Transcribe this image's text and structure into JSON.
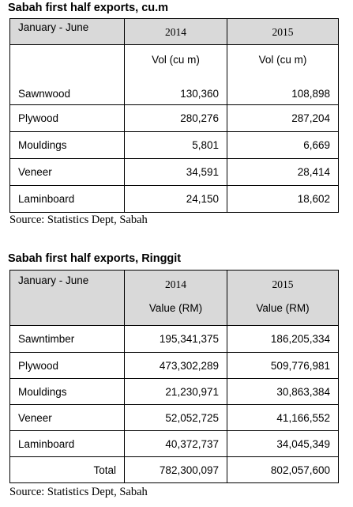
{
  "table1": {
    "title": "Sabah first half exports, cu.m",
    "period_label": "January - June",
    "years": [
      "2014",
      "2015"
    ],
    "units": [
      "Vol (cu m)",
      "Vol (cu m)"
    ],
    "rows": [
      {
        "label": "Sawnwood",
        "v2014": "130,360",
        "v2015": "108,898"
      },
      {
        "label": "Plywood",
        "v2014": "280,276",
        "v2015": "287,204"
      },
      {
        "label": "Mouldings",
        "v2014": "5,801",
        "v2015": "6,669"
      },
      {
        "label": "Veneer",
        "v2014": "34,591",
        "v2015": "28,414"
      },
      {
        "label": "Laminboard",
        "v2014": "24,150",
        "v2015": "18,602"
      }
    ],
    "source": "Source: Statistics Dept, Sabah"
  },
  "table2": {
    "title": "Sabah first half exports, Ringgit",
    "period_label": "January - June",
    "years": [
      "2014",
      "2015"
    ],
    "units": [
      "Value (RM)",
      "Value (RM)"
    ],
    "rows": [
      {
        "label": "Sawntimber",
        "v2014": "195,341,375",
        "v2015": "186,205,334"
      },
      {
        "label": "Plywood",
        "v2014": "473,302,289",
        "v2015": "509,776,981"
      },
      {
        "label": "Mouldings",
        "v2014": "21,230,971",
        "v2015": "30,863,384"
      },
      {
        "label": "Veneer",
        "v2014": "52,052,725",
        "v2015": "41,166,552"
      },
      {
        "label": "Laminboard",
        "v2014": "40,372,737",
        "v2015": "34,045,349"
      }
    ],
    "total": {
      "label": "Total",
      "v2014": "782,300,097",
      "v2015": "802,057,600"
    },
    "source": "Source: Statistics Dept, Sabah"
  },
  "colors": {
    "header_shade": "#d9d9d9",
    "border": "#000000"
  }
}
